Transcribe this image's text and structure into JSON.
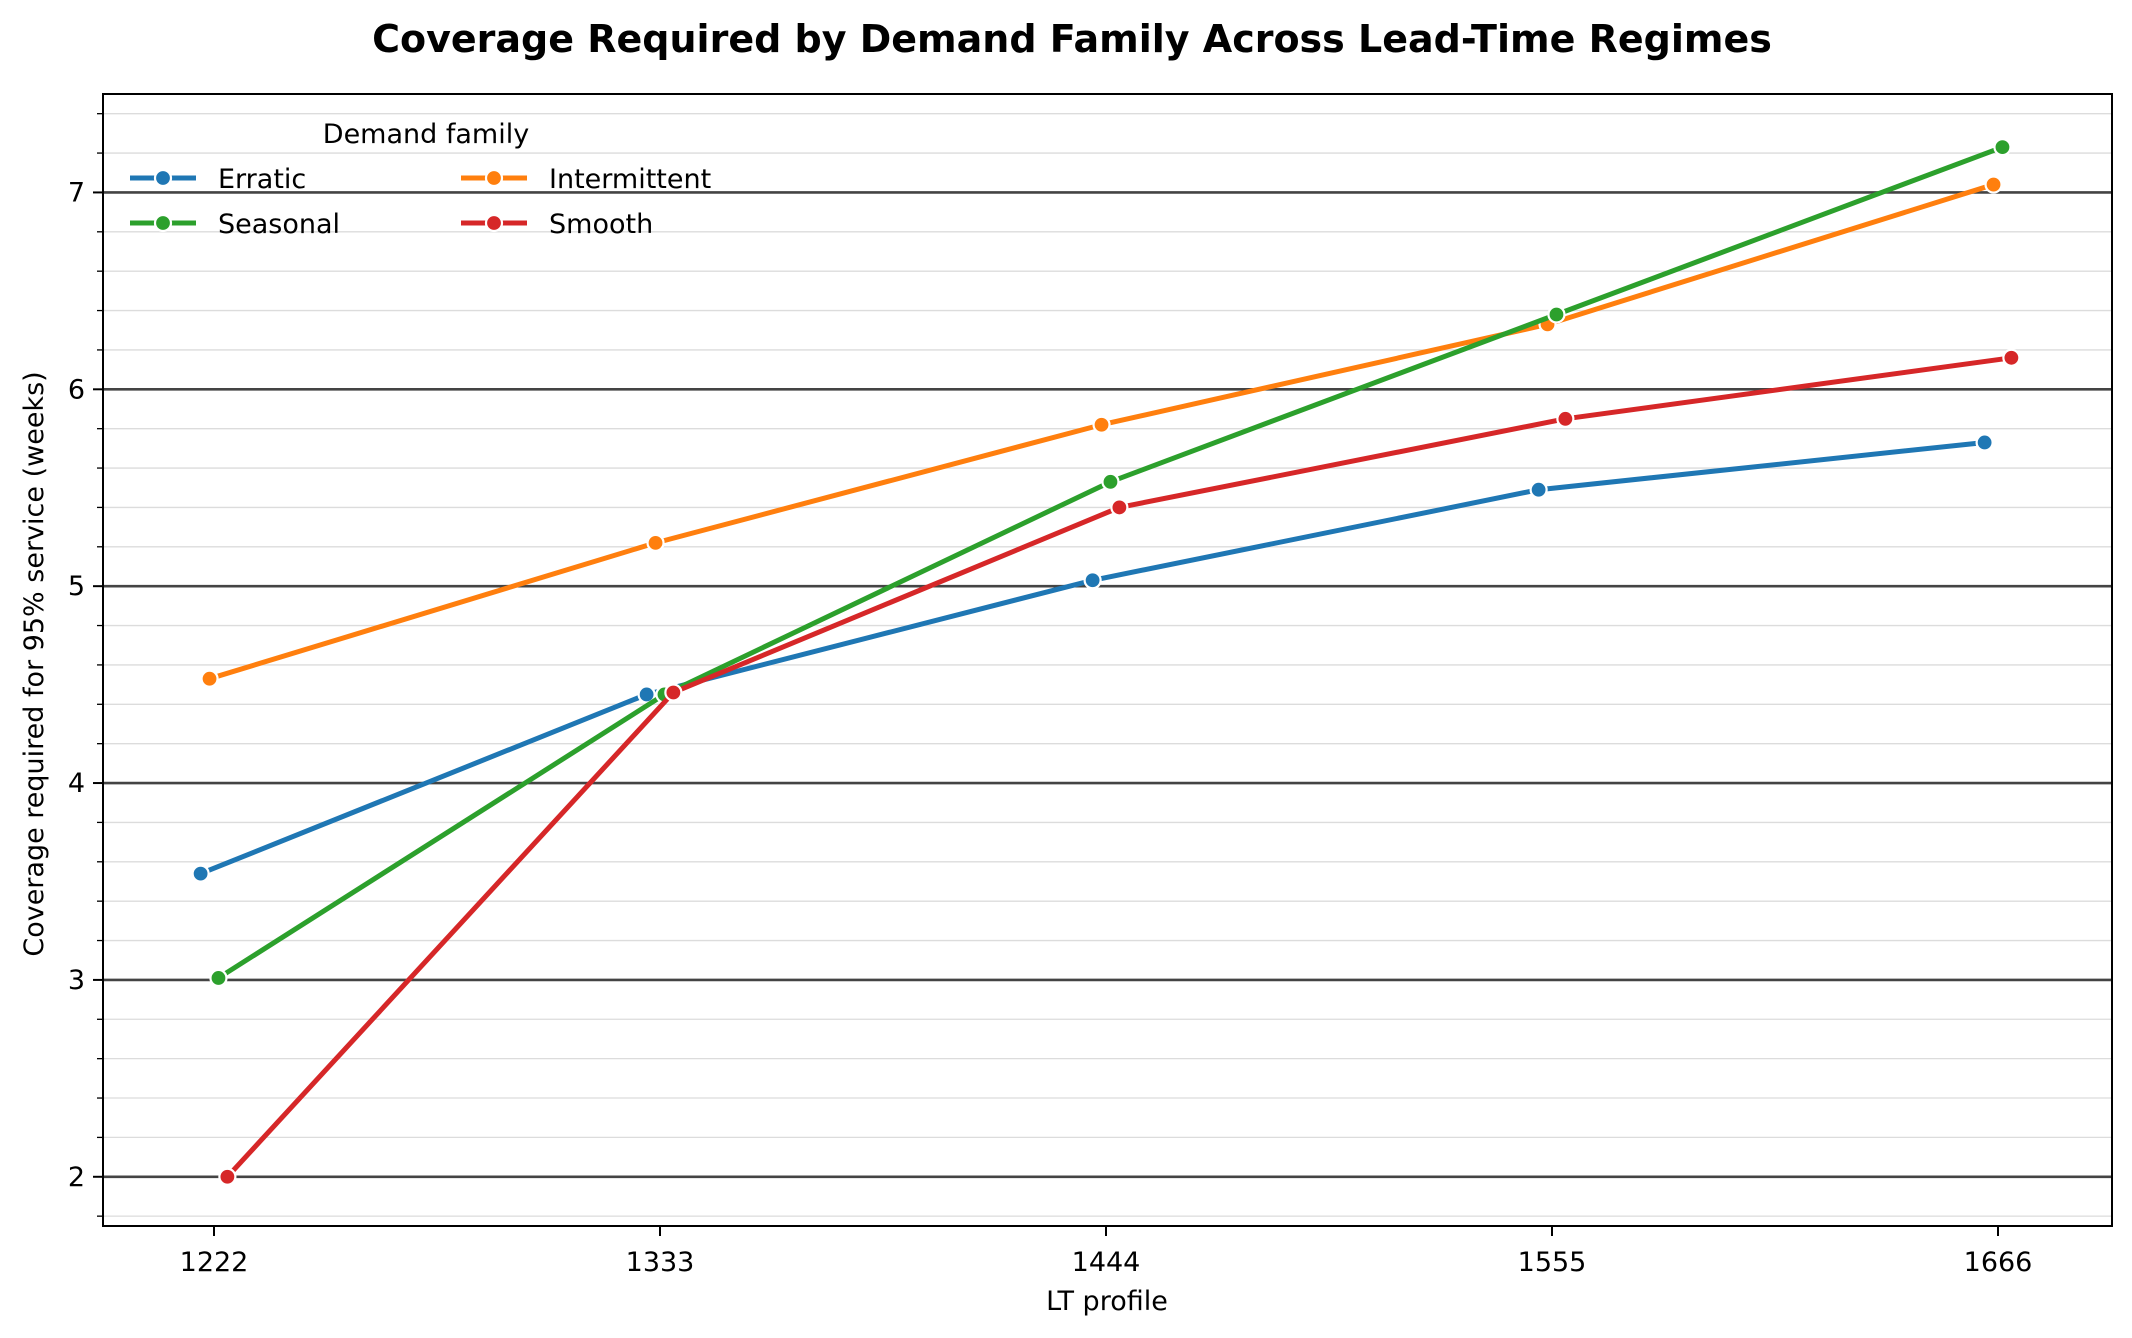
{
  "chart_data": {
    "type": "line",
    "title": "Coverage Required by Demand Family Across Lead-Time Regimes",
    "xlabel": "LT profile",
    "ylabel": "Coverage required for 95% service (weeks)",
    "categories": [
      "1222",
      "1333",
      "1444",
      "1555",
      "1666"
    ],
    "ylim": [
      1.75,
      7.5
    ],
    "yticks": [
      2,
      3,
      4,
      5,
      6,
      7
    ],
    "y_minor_step": 0.2,
    "grid": "horizontal",
    "legend": {
      "title": "Demand family",
      "placement": "top-left",
      "columns": 2
    },
    "series": [
      {
        "name": "Erratic",
        "color": "#1f77b4",
        "offset": -0.03,
        "values": [
          3.54,
          4.45,
          5.03,
          5.49,
          5.73
        ]
      },
      {
        "name": "Intermittent",
        "color": "#ff7f0e",
        "offset": -0.01,
        "values": [
          4.53,
          5.22,
          5.82,
          6.33,
          7.04
        ]
      },
      {
        "name": "Seasonal",
        "color": "#2ca02c",
        "offset": 0.01,
        "values": [
          3.01,
          4.45,
          5.53,
          6.38,
          7.23
        ]
      },
      {
        "name": "Smooth",
        "color": "#d62728",
        "offset": 0.03,
        "values": [
          2.0,
          4.46,
          5.4,
          5.85,
          6.16
        ]
      }
    ]
  }
}
